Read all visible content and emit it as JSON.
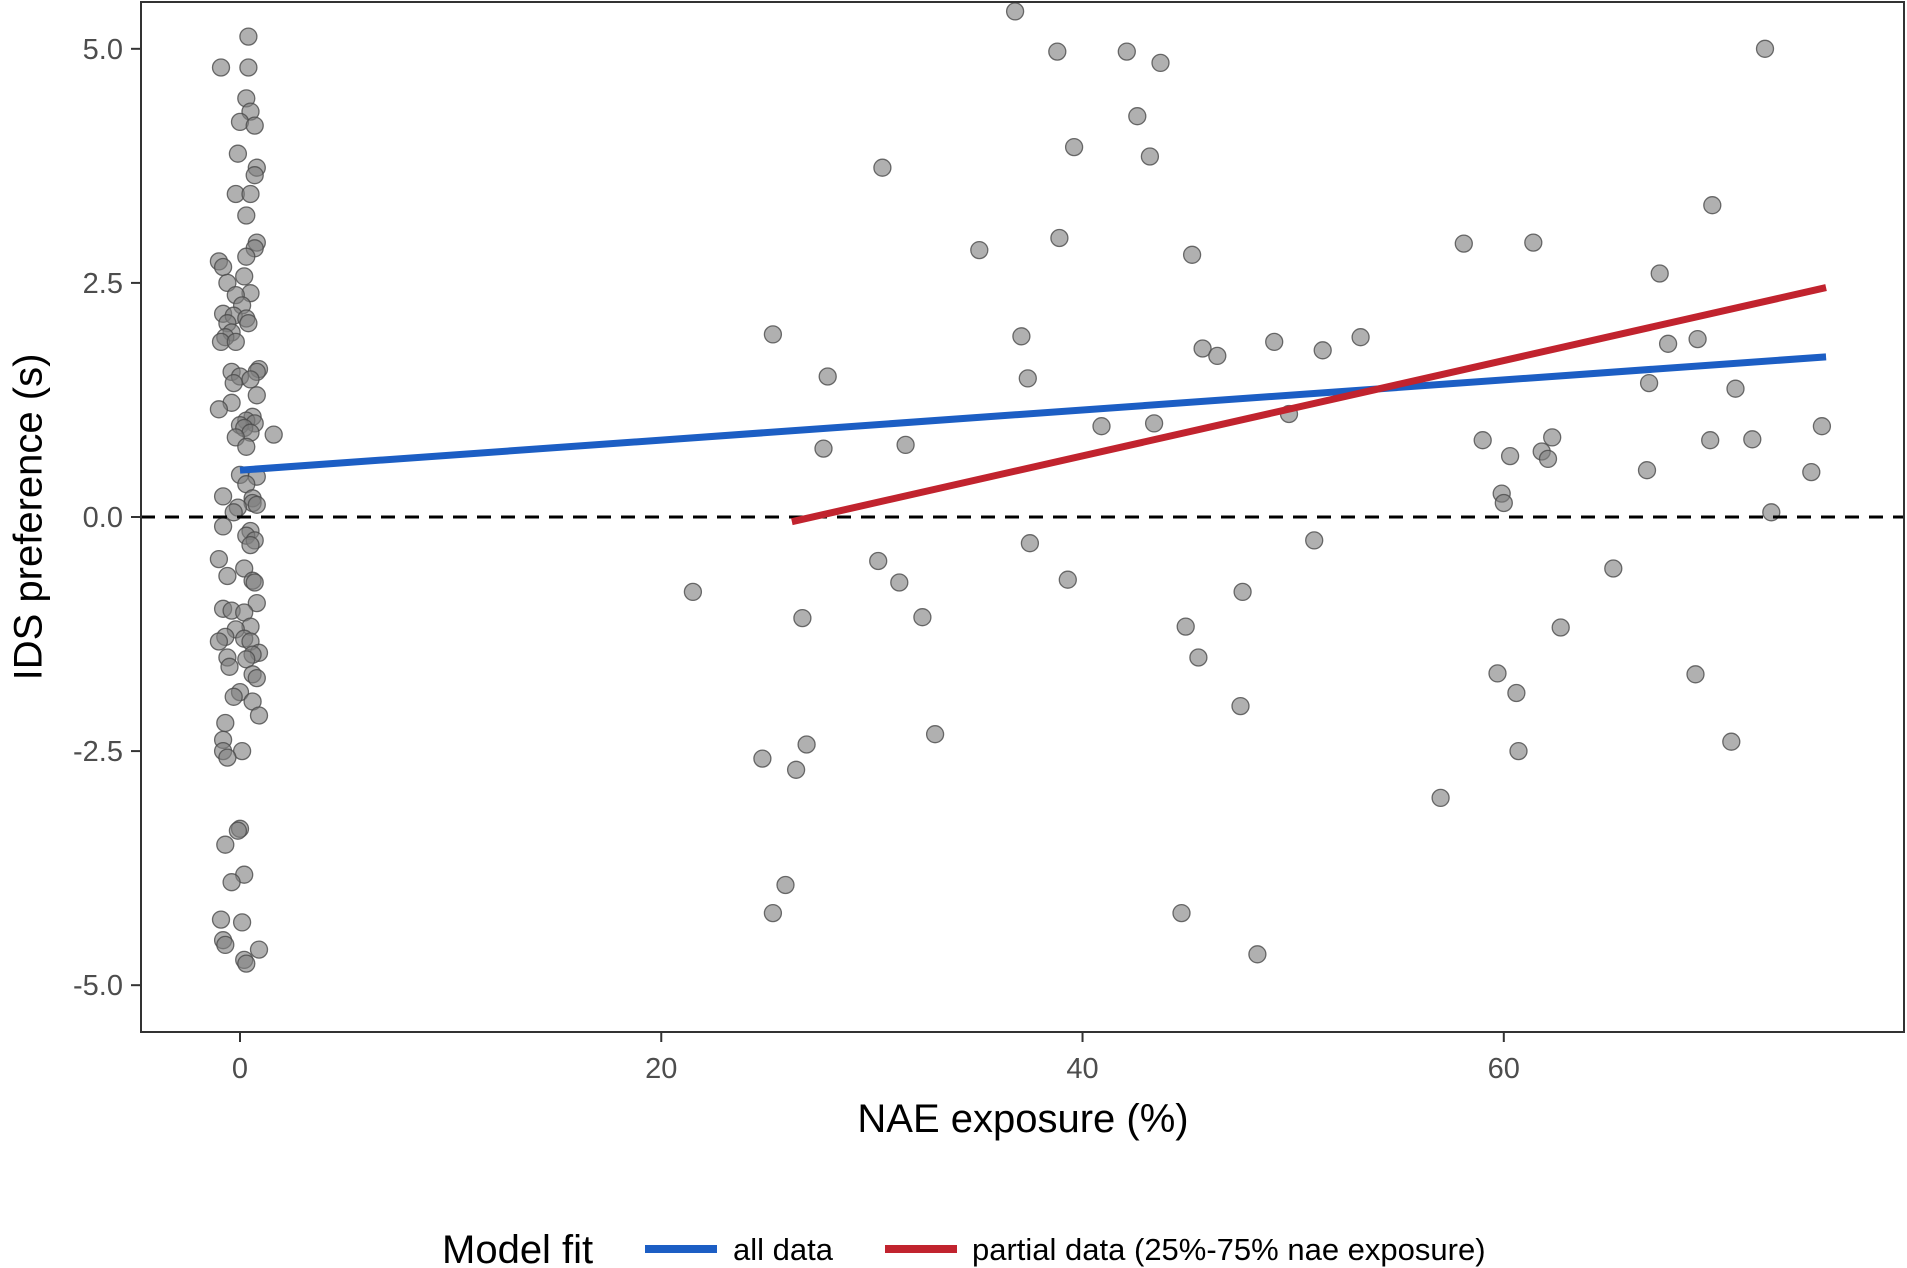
{
  "chart_data": {
    "type": "scatter",
    "xlabel": "NAE exposure (%)",
    "ylabel": "IDS preference (s)",
    "xlim": [
      -4.7,
      79
    ],
    "ylim": [
      -5.5,
      5.5
    ],
    "x_ticks": [
      0,
      20,
      40,
      60
    ],
    "x_tick_labels": [
      "0",
      "20",
      "40",
      "60"
    ],
    "y_ticks": [
      -5,
      -2.5,
      0,
      2.5,
      5
    ],
    "y_tick_labels": [
      "-5.0",
      "-2.5",
      "0.0",
      "2.5",
      "5.0"
    ],
    "grid": false,
    "reference_line": {
      "y": 0,
      "style": "dashed",
      "color": "#000000"
    },
    "point_color": "#808080",
    "legend": {
      "title": "Model fit",
      "position": "bottom",
      "entries": [
        {
          "label": "all data",
          "color": "#1c5ec4"
        },
        {
          "label": "partial data (25%-75% nae exposure)",
          "color": "#c1232e"
        }
      ]
    },
    "fit_lines": [
      {
        "label": "all data",
        "color": "#1c5ec4",
        "x": [
          0,
          75.3
        ],
        "y": [
          0.5,
          1.71
        ]
      },
      {
        "label": "partial data (25%-75% nae exposure)",
        "color": "#c1232e",
        "x": [
          26.2,
          75.3
        ],
        "y": [
          -0.05,
          2.45
        ]
      }
    ],
    "points": [
      [
        -0.9,
        4.8
      ],
      [
        0.4,
        5.13
      ],
      [
        0.4,
        4.8
      ],
      [
        0.3,
        4.47
      ],
      [
        0.5,
        4.33
      ],
      [
        0.0,
        4.22
      ],
      [
        0.7,
        4.18
      ],
      [
        -0.1,
        3.88
      ],
      [
        0.8,
        3.73
      ],
      [
        0.7,
        3.65
      ],
      [
        -0.2,
        3.45
      ],
      [
        0.5,
        3.45
      ],
      [
        0.3,
        3.22
      ],
      [
        0.8,
        2.93
      ],
      [
        0.7,
        2.87
      ],
      [
        -1.0,
        2.73
      ],
      [
        0.3,
        2.78
      ],
      [
        -0.8,
        2.67
      ],
      [
        0.2,
        2.57
      ],
      [
        -0.6,
        2.5
      ],
      [
        0.5,
        2.39
      ],
      [
        -0.2,
        2.37
      ],
      [
        0.1,
        2.26
      ],
      [
        -0.8,
        2.17
      ],
      [
        -0.3,
        2.15
      ],
      [
        0.3,
        2.12
      ],
      [
        -0.6,
        2.07
      ],
      [
        0.4,
        2.07
      ],
      [
        -0.4,
        1.97
      ],
      [
        -0.7,
        1.92
      ],
      [
        -0.9,
        1.87
      ],
      [
        -0.2,
        1.87
      ],
      [
        0.9,
        1.58
      ],
      [
        -0.4,
        1.55
      ],
      [
        0.8,
        1.55
      ],
      [
        0.0,
        1.5
      ],
      [
        0.5,
        1.47
      ],
      [
        -0.3,
        1.43
      ],
      [
        0.8,
        1.3
      ],
      [
        -0.4,
        1.22
      ],
      [
        -1.0,
        1.15
      ],
      [
        0.6,
        1.07
      ],
      [
        0.3,
        1.03
      ],
      [
        0.7,
        1.0
      ],
      [
        0.0,
        0.98
      ],
      [
        0.2,
        0.95
      ],
      [
        0.5,
        0.9
      ],
      [
        1.6,
        0.88
      ],
      [
        -0.2,
        0.85
      ],
      [
        0.3,
        0.75
      ],
      [
        0.0,
        0.45
      ],
      [
        0.8,
        0.43
      ],
      [
        0.3,
        0.35
      ],
      [
        0.6,
        0.2
      ],
      [
        -0.8,
        0.22
      ],
      [
        0.6,
        0.15
      ],
      [
        0.8,
        0.13
      ],
      [
        -0.1,
        0.1
      ],
      [
        -0.3,
        0.05
      ],
      [
        -0.8,
        -0.1
      ],
      [
        0.5,
        -0.15
      ],
      [
        0.3,
        -0.2
      ],
      [
        0.7,
        -0.25
      ],
      [
        0.5,
        -0.3
      ],
      [
        -1.0,
        -0.45
      ],
      [
        0.2,
        -0.55
      ],
      [
        -0.6,
        -0.63
      ],
      [
        0.6,
        -0.68
      ],
      [
        0.7,
        -0.7
      ],
      [
        0.8,
        -0.92
      ],
      [
        -0.8,
        -0.98
      ],
      [
        -0.4,
        -1.0
      ],
      [
        0.2,
        -1.02
      ],
      [
        0.5,
        -1.17
      ],
      [
        -0.2,
        -1.2
      ],
      [
        -0.7,
        -1.28
      ],
      [
        0.2,
        -1.3
      ],
      [
        -1.0,
        -1.33
      ],
      [
        0.5,
        -1.33
      ],
      [
        0.9,
        -1.45
      ],
      [
        0.6,
        -1.47
      ],
      [
        -0.6,
        -1.5
      ],
      [
        0.3,
        -1.52
      ],
      [
        -0.5,
        -1.6
      ],
      [
        0.6,
        -1.68
      ],
      [
        0.8,
        -1.72
      ],
      [
        0.0,
        -1.87
      ],
      [
        -0.3,
        -1.92
      ],
      [
        0.6,
        -1.97
      ],
      [
        0.9,
        -2.12
      ],
      [
        -0.7,
        -2.2
      ],
      [
        -0.8,
        -2.38
      ],
      [
        0.1,
        -2.5
      ],
      [
        -0.8,
        -2.5
      ],
      [
        -0.6,
        -2.57
      ],
      [
        0.0,
        -3.33
      ],
      [
        -0.1,
        -3.35
      ],
      [
        -0.7,
        -3.5
      ],
      [
        0.2,
        -3.82
      ],
      [
        -0.4,
        -3.9
      ],
      [
        -0.9,
        -4.3
      ],
      [
        0.1,
        -4.33
      ],
      [
        -0.8,
        -4.52
      ],
      [
        -0.7,
        -4.57
      ],
      [
        0.9,
        -4.62
      ],
      [
        0.2,
        -4.73
      ],
      [
        0.3,
        -4.77
      ],
      [
        21.5,
        -0.8
      ],
      [
        24.8,
        -2.58
      ],
      [
        25.3,
        1.95
      ],
      [
        25.3,
        -4.23
      ],
      [
        25.9,
        -3.93
      ],
      [
        26.4,
        -2.7
      ],
      [
        26.7,
        -1.08
      ],
      [
        26.9,
        -2.43
      ],
      [
        27.7,
        0.73
      ],
      [
        27.9,
        1.5
      ],
      [
        30.3,
        -0.47
      ],
      [
        30.5,
        3.73
      ],
      [
        31.3,
        -0.7
      ],
      [
        31.6,
        0.77
      ],
      [
        32.4,
        -1.07
      ],
      [
        33.0,
        -2.32
      ],
      [
        35.1,
        2.85
      ],
      [
        36.8,
        5.4
      ],
      [
        37.1,
        1.93
      ],
      [
        37.4,
        1.48
      ],
      [
        37.5,
        -0.28
      ],
      [
        38.8,
        4.97
      ],
      [
        38.9,
        2.98
      ],
      [
        39.3,
        -0.67
      ],
      [
        39.6,
        3.95
      ],
      [
        40.9,
        0.97
      ],
      [
        42.1,
        4.97
      ],
      [
        42.6,
        4.28
      ],
      [
        43.2,
        3.85
      ],
      [
        43.4,
        1.0
      ],
      [
        43.7,
        4.85
      ],
      [
        44.7,
        -4.23
      ],
      [
        44.9,
        -1.17
      ],
      [
        45.2,
        2.8
      ],
      [
        45.5,
        -1.5
      ],
      [
        45.7,
        1.8
      ],
      [
        46.4,
        1.72
      ],
      [
        47.5,
        -2.02
      ],
      [
        47.6,
        -0.8
      ],
      [
        48.3,
        -4.67
      ],
      [
        49.1,
        1.87
      ],
      [
        49.8,
        1.1
      ],
      [
        51.0,
        -0.25
      ],
      [
        51.4,
        1.78
      ],
      [
        53.2,
        1.92
      ],
      [
        57.0,
        -3.0
      ],
      [
        58.1,
        2.92
      ],
      [
        59.0,
        0.82
      ],
      [
        59.7,
        -1.67
      ],
      [
        59.9,
        0.25
      ],
      [
        60.0,
        0.15
      ],
      [
        60.3,
        0.65
      ],
      [
        60.6,
        -1.88
      ],
      [
        60.7,
        -2.5
      ],
      [
        61.4,
        2.93
      ],
      [
        61.8,
        0.7
      ],
      [
        62.1,
        0.62
      ],
      [
        62.3,
        0.85
      ],
      [
        62.7,
        -1.18
      ],
      [
        65.2,
        -0.55
      ],
      [
        66.8,
        0.5
      ],
      [
        66.9,
        1.43
      ],
      [
        67.4,
        2.6
      ],
      [
        67.8,
        1.85
      ],
      [
        69.1,
        -1.68
      ],
      [
        69.2,
        1.9
      ],
      [
        69.8,
        0.82
      ],
      [
        69.9,
        3.33
      ],
      [
        70.8,
        -2.4
      ],
      [
        71.0,
        1.37
      ],
      [
        71.8,
        0.83
      ],
      [
        72.4,
        5.0
      ],
      [
        72.7,
        0.05
      ],
      [
        74.6,
        0.48
      ],
      [
        75.1,
        0.97
      ]
    ]
  }
}
